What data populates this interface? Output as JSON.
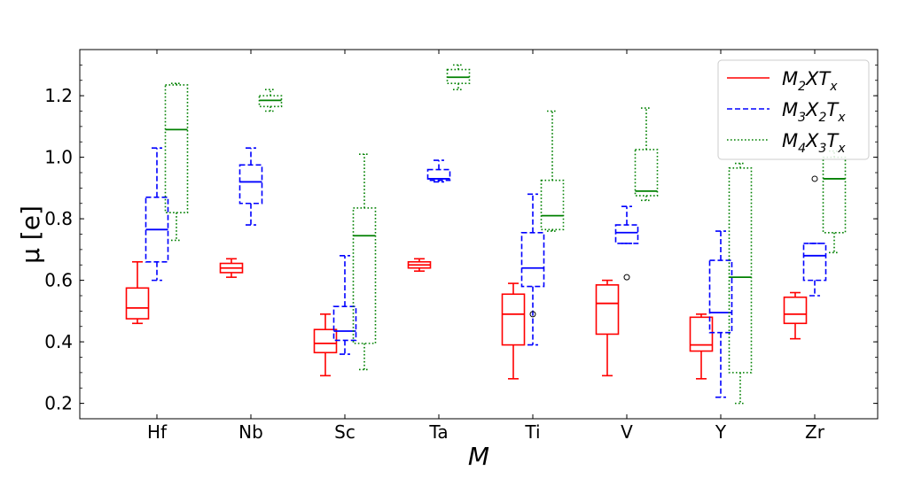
{
  "chart_data": {
    "type": "box",
    "categories": [
      "Hf",
      "Nb",
      "Sc",
      "Ta",
      "Ti",
      "V",
      "Y",
      "Zr"
    ],
    "xlabel": "M",
    "ylabel": "μ [e]",
    "ylim": [
      0.15,
      1.35
    ],
    "yticks": [
      0.2,
      0.4,
      0.6,
      0.8,
      1.0,
      1.2
    ],
    "ytick_labels": [
      "0.2",
      "0.4",
      "0.6",
      "0.8",
      "1.0",
      "1.2"
    ],
    "legend_position": "top-right",
    "series": [
      {
        "name": "M2XTx",
        "color": "#ff0000",
        "dash": "solid",
        "boxes": [
          {
            "whislo": 0.46,
            "q1": 0.475,
            "med": 0.51,
            "q3": 0.575,
            "whishi": 0.66,
            "fliers": []
          },
          {
            "whislo": 0.61,
            "q1": 0.625,
            "med": 0.64,
            "q3": 0.655,
            "whishi": 0.67,
            "fliers": []
          },
          {
            "whislo": 0.29,
            "q1": 0.365,
            "med": 0.395,
            "q3": 0.44,
            "whishi": 0.49,
            "fliers": []
          },
          {
            "whislo": 0.63,
            "q1": 0.64,
            "med": 0.65,
            "q3": 0.66,
            "whishi": 0.67,
            "fliers": []
          },
          {
            "whislo": 0.28,
            "q1": 0.39,
            "med": 0.49,
            "q3": 0.555,
            "whishi": 0.59,
            "fliers": []
          },
          {
            "whislo": 0.29,
            "q1": 0.425,
            "med": 0.525,
            "q3": 0.585,
            "whishi": 0.6,
            "fliers": []
          },
          {
            "whislo": 0.28,
            "q1": 0.37,
            "med": 0.39,
            "q3": 0.48,
            "whishi": 0.49,
            "fliers": []
          },
          {
            "whislo": 0.41,
            "q1": 0.46,
            "med": 0.49,
            "q3": 0.545,
            "whishi": 0.56,
            "fliers": []
          }
        ]
      },
      {
        "name": "M3X2Tx",
        "color": "#0000ff",
        "dash": "dashed",
        "boxes": [
          {
            "whislo": 0.6,
            "q1": 0.66,
            "med": 0.765,
            "q3": 0.87,
            "whishi": 1.03,
            "fliers": []
          },
          {
            "whislo": 0.78,
            "q1": 0.85,
            "med": 0.92,
            "q3": 0.975,
            "whishi": 1.03,
            "fliers": []
          },
          {
            "whislo": 0.36,
            "q1": 0.405,
            "med": 0.435,
            "q3": 0.515,
            "whishi": 0.68,
            "fliers": []
          },
          {
            "whislo": 0.92,
            "q1": 0.925,
            "med": 0.93,
            "q3": 0.96,
            "whishi": 0.99,
            "fliers": []
          },
          {
            "whislo": 0.39,
            "q1": 0.58,
            "med": 0.64,
            "q3": 0.755,
            "whishi": 0.88,
            "fliers": [
              0.49
            ]
          },
          {
            "whislo": 0.72,
            "q1": 0.72,
            "med": 0.755,
            "q3": 0.78,
            "whishi": 0.84,
            "fliers": [
              0.61
            ]
          },
          {
            "whislo": 0.22,
            "q1": 0.43,
            "med": 0.495,
            "q3": 0.665,
            "whishi": 0.76,
            "fliers": []
          },
          {
            "whislo": 0.55,
            "q1": 0.6,
            "med": 0.68,
            "q3": 0.72,
            "whishi": 0.72,
            "fliers": [
              0.93
            ]
          }
        ]
      },
      {
        "name": "M4X3Tx",
        "color": "#008000",
        "dash": "dotted",
        "boxes": [
          {
            "whislo": 0.73,
            "q1": 0.82,
            "med": 1.09,
            "q3": 1.235,
            "whishi": 1.24,
            "fliers": []
          },
          {
            "whislo": 1.15,
            "q1": 1.165,
            "med": 1.185,
            "q3": 1.2,
            "whishi": 1.22,
            "fliers": []
          },
          {
            "whislo": 0.31,
            "q1": 0.395,
            "med": 0.745,
            "q3": 0.835,
            "whishi": 1.01,
            "fliers": []
          },
          {
            "whislo": 1.22,
            "q1": 1.24,
            "med": 1.26,
            "q3": 1.285,
            "whishi": 1.3,
            "fliers": []
          },
          {
            "whislo": 0.76,
            "q1": 0.765,
            "med": 0.81,
            "q3": 0.925,
            "whishi": 1.15,
            "fliers": []
          },
          {
            "whislo": 0.86,
            "q1": 0.875,
            "med": 0.89,
            "q3": 1.025,
            "whishi": 1.16,
            "fliers": []
          },
          {
            "whislo": 0.2,
            "q1": 0.3,
            "med": 0.61,
            "q3": 0.965,
            "whishi": 0.98,
            "fliers": []
          },
          {
            "whislo": 0.69,
            "q1": 0.755,
            "med": 0.93,
            "q3": 1.0,
            "whishi": 1.02,
            "fliers": []
          }
        ]
      }
    ]
  }
}
